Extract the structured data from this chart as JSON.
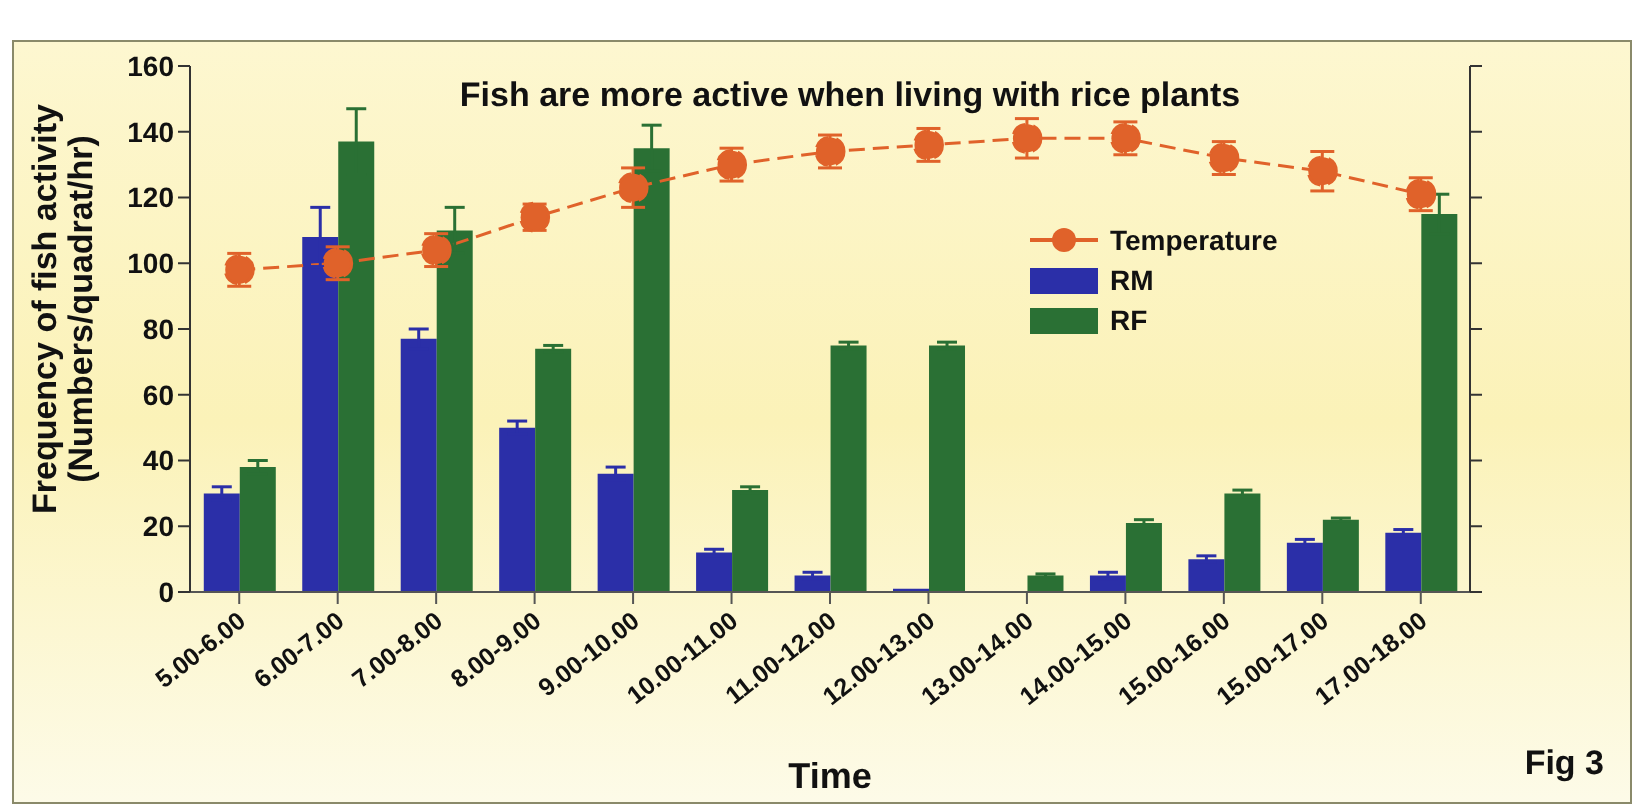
{
  "chart_data": {
    "type": "bar",
    "title": "Fish are more active when living with rice plants",
    "xlabel": "Time",
    "ylabel": "Frequency of fish activity\n(Numbers/quadrat/hr)",
    "annotations": [
      "Fig 3"
    ],
    "categories": [
      "5.00-6.00",
      "6.00-7.00",
      "7.00-8.00",
      "8.00-9.00",
      "9.00-10.00",
      "10.00-11.00",
      "11.00-12.00",
      "12.00-13.00",
      "13.00-14.00",
      "14.00-15.00",
      "15.00-16.00",
      "15.00-17.00",
      "17.00-18.00"
    ],
    "series": [
      {
        "name": "Temperature",
        "type": "line",
        "color": "#e0622a",
        "marker": "circle",
        "line_style": "dashed",
        "values": [
          98,
          100,
          104,
          114,
          123,
          130,
          134,
          136,
          138,
          138,
          132,
          128,
          121
        ],
        "errors": [
          5,
          5,
          5,
          4,
          6,
          5,
          5,
          5,
          6,
          5,
          5,
          6,
          5
        ]
      },
      {
        "name": "RM",
        "color": "#2b2fa8",
        "values": [
          30,
          108,
          77,
          50,
          36,
          12,
          5,
          1,
          null,
          5,
          10,
          15,
          18
        ],
        "errors": [
          2,
          9,
          3,
          2,
          2,
          1,
          1,
          null,
          null,
          1,
          1,
          1,
          1
        ]
      },
      {
        "name": "RF",
        "color": "#2a7034",
        "values": [
          38,
          137,
          110,
          74,
          135,
          31,
          75,
          75,
          5,
          21,
          30,
          22,
          115
        ],
        "errors": [
          2,
          10,
          7,
          1,
          7,
          1,
          1,
          1,
          0.5,
          1,
          1,
          0.5,
          6
        ]
      }
    ],
    "ylim": [
      0,
      160
    ],
    "yticks": [
      0,
      20,
      40,
      60,
      80,
      100,
      120,
      140,
      160
    ],
    "grid": false,
    "legend": "top right"
  }
}
